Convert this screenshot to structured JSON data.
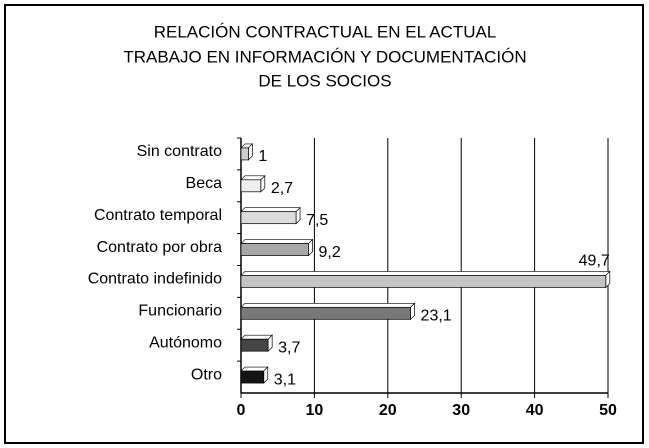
{
  "chart_data": {
    "type": "barh",
    "title": [
      "RELACIÓN CONTRACTUAL EN EL ACTUAL",
      "TRABAJO EN INFORMACIÓN Y DOCUMENTACIÓN",
      "DE LOS SOCIOS"
    ],
    "categories": [
      "Sin contrato",
      "Beca",
      "Contrato temporal",
      "Contrato por obra",
      "Contrato indefinido",
      "Funcionario",
      "Autónomo",
      "Otro"
    ],
    "values": [
      1,
      2.7,
      7.5,
      9.2,
      49.7,
      23.1,
      3.7,
      3.1
    ],
    "value_labels": [
      "1",
      "2,7",
      "7,5",
      "9,2",
      "49,7",
      "23,1",
      "3,7",
      "3,1"
    ],
    "colors": [
      "#cfcfcf",
      "#efefef",
      "#dcdcdc",
      "#a8a8a8",
      "#c4c4c4",
      "#787878",
      "#454545",
      "#151515"
    ],
    "xlim": [
      0,
      50
    ],
    "xticks": [
      0,
      10,
      20,
      30,
      40,
      50
    ],
    "grid": true
  }
}
